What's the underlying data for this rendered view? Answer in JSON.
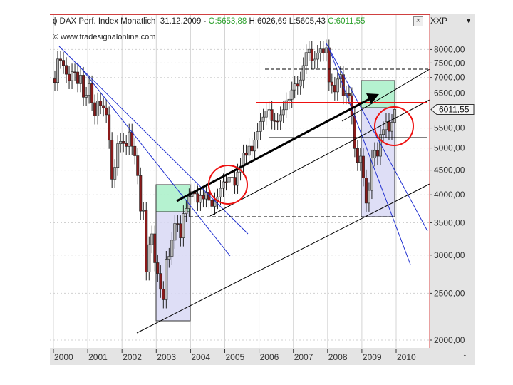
{
  "header": {
    "instrument": "DAX Perf. Index Monatlich",
    "date": "31.12.2009 -",
    "open": "O:5653,88",
    "high": "H:6026,69",
    "low": "L:5605,43",
    "close": "C:6011,55",
    "source": "www.tradesignalonline.com",
    "close_button": "×",
    "symbol_selector": "XXP",
    "dropdown_icon": "▼",
    "scroll_up_icon": "↑"
  },
  "colors": {
    "bull": "#b8b8b8",
    "bear": "#8b1a1a",
    "trendline_blue": "#1f2fd0",
    "resistance_red": "#ee1111",
    "box_green": "#a8f0c8",
    "box_lavender": "#d8d8f4",
    "header_green": "#2ca02c"
  },
  "chart_data": {
    "type": "candlestick",
    "title": "DAX Perf. Index Monatlich",
    "y_scale": "log",
    "ylim": [
      1950,
      8500
    ],
    "grid": true,
    "y_ticks": [
      "8000,00",
      "7500,00",
      "7000,00",
      "6500,00",
      "5500,00",
      "5000,00",
      "4500,00",
      "4000,00",
      "3500,00",
      "3000,00",
      "2500,00",
      "2000,00"
    ],
    "y_tick_values": [
      8000,
      7500,
      7000,
      6500,
      5500,
      5000,
      4500,
      4000,
      3500,
      3000,
      2500,
      2000
    ],
    "x_ticks": [
      "2000",
      "2001",
      "2002",
      "2003",
      "2004",
      "2005",
      "2006",
      "2007",
      "2008",
      "2009",
      "2010"
    ],
    "last_price_label": "6011,55",
    "last_price": 6011.55,
    "start_open": 6958,
    "monthly_close": [
      6835,
      7644,
      7599,
      7414,
      7109,
      6898,
      7191,
      7185,
      6798,
      7078,
      6372,
      6434,
      6795,
      6208,
      5829,
      6264,
      6123,
      6058,
      5861,
      5188,
      4308,
      4560,
      5102,
      5160,
      5108,
      5039,
      5397,
      5041,
      4818,
      4383,
      3700,
      3712,
      2769,
      3153,
      3320,
      2893,
      2748,
      2548,
      2424,
      2942,
      2983,
      3221,
      3487,
      3485,
      3257,
      3656,
      3746,
      3965,
      4059,
      4018,
      3857,
      3985,
      3921,
      4052,
      3895,
      3785,
      3893,
      3960,
      4126,
      4256,
      4254,
      4350,
      4349,
      4185,
      4460,
      4586,
      4886,
      4829,
      5044,
      4929,
      5193,
      5408,
      5674,
      5796,
      5970,
      6009,
      5692,
      5683,
      5681,
      5860,
      6004,
      6269,
      6309,
      6597,
      6789,
      6716,
      6917,
      7409,
      7883,
      8007,
      7584,
      7638,
      7862,
      8019,
      7871,
      8067,
      6851,
      6748,
      6535,
      6949,
      7097,
      6418,
      6480,
      6422,
      5831,
      4988,
      4669,
      4810,
      4338,
      3844,
      4085,
      4770,
      4941,
      4809,
      5332,
      5458,
      5675,
      5415,
      5653.88,
      6011.55
    ],
    "last_candle": {
      "open": 5653.88,
      "high": 6026.69,
      "low": 5605.43,
      "close": 6011.55
    }
  }
}
